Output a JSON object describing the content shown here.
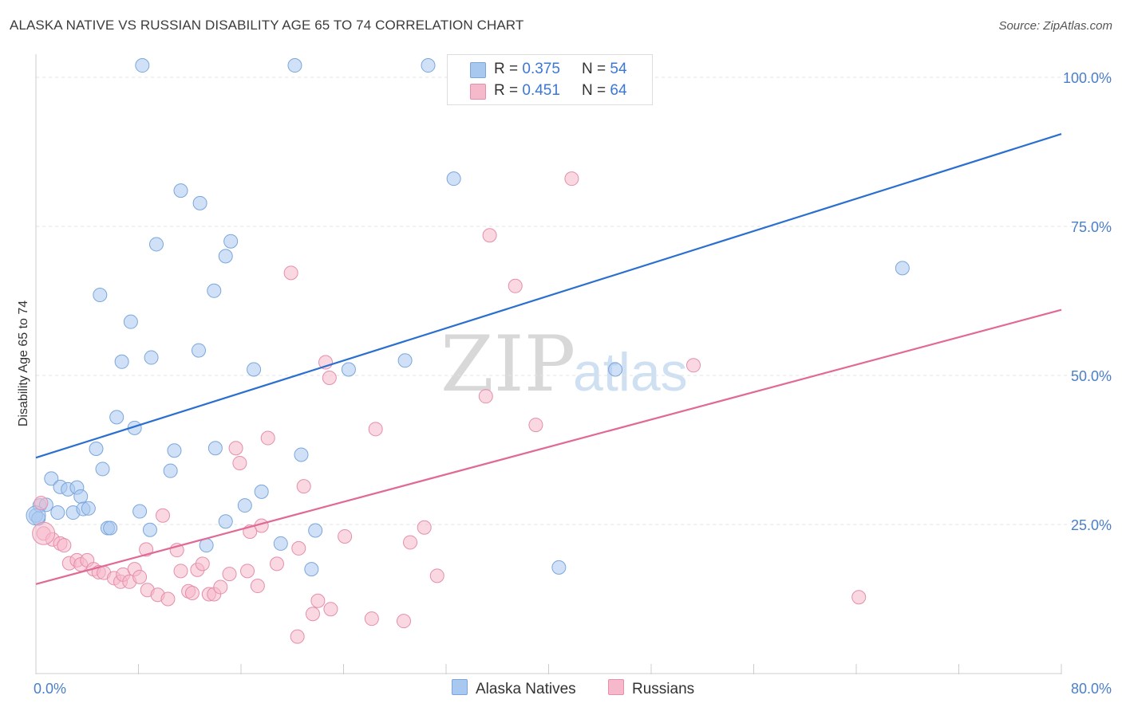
{
  "header": {
    "title": "ALASKA NATIVE VS RUSSIAN DISABILITY AGE 65 TO 74 CORRELATION CHART",
    "source": "Source: ZipAtlas.com"
  },
  "legend": {
    "rows": [
      {
        "r_label": "R =",
        "r_value": "0.375",
        "n_label": "N =",
        "n_value": "54",
        "color": "#a9c8f0"
      },
      {
        "r_label": "R =",
        "r_value": "0.451",
        "n_label": "N =",
        "n_value": "64",
        "color": "#f6b8cb"
      }
    ]
  },
  "bottom_legend": {
    "items": [
      {
        "label": "Alaska Natives",
        "color": "#a9c8f0"
      },
      {
        "label": "Russians",
        "color": "#f6b8cb"
      }
    ]
  },
  "watermark": {
    "zip": "ZIP",
    "atlas": "atlas"
  },
  "chart_data": {
    "type": "scatter",
    "title": "ALASKA NATIVE VS RUSSIAN DISABILITY AGE 65 TO 74 CORRELATION CHART",
    "xlabel": "",
    "ylabel": "Disability Age 65 to 74",
    "xlim": [
      0,
      80
    ],
    "ylim": [
      0,
      105
    ],
    "x_tick_labels": [
      "0.0%",
      "80.0%"
    ],
    "y_tick_labels": [
      "25.0%",
      "50.0%",
      "75.0%",
      "100.0%"
    ],
    "y_ticks": [
      25,
      50,
      75,
      100
    ],
    "grid": true,
    "legend_position": "top-center",
    "series": [
      {
        "name": "Alaska Natives",
        "color": "#a9c8f0",
        "stroke": "#7aa6dc",
        "trend_color": "#2a6fcf",
        "trend": {
          "x": [
            0,
            80
          ],
          "y": [
            36.2,
            90.5
          ]
        },
        "points": [
          [
            8.3,
            102.0
          ],
          [
            20.2,
            102.0
          ],
          [
            30.6,
            102.0
          ],
          [
            46.2,
            102.0
          ],
          [
            32.6,
            83.0
          ],
          [
            11.3,
            81.0
          ],
          [
            12.8,
            78.9
          ],
          [
            9.4,
            72.0
          ],
          [
            15.2,
            72.5
          ],
          [
            14.8,
            70.0
          ],
          [
            67.6,
            68.0
          ],
          [
            5.0,
            63.5
          ],
          [
            13.9,
            64.2
          ],
          [
            7.4,
            59.0
          ],
          [
            9.0,
            53.0
          ],
          [
            12.7,
            54.2
          ],
          [
            6.7,
            52.3
          ],
          [
            17.0,
            51.0
          ],
          [
            24.4,
            51.0
          ],
          [
            28.8,
            52.5
          ],
          [
            45.2,
            51.0
          ],
          [
            6.3,
            43.0
          ],
          [
            7.7,
            41.2
          ],
          [
            4.7,
            37.7
          ],
          [
            10.8,
            37.4
          ],
          [
            14.0,
            37.8
          ],
          [
            20.7,
            36.7
          ],
          [
            5.2,
            34.3
          ],
          [
            10.5,
            34.0
          ],
          [
            1.2,
            32.7
          ],
          [
            1.9,
            31.3
          ],
          [
            2.5,
            30.9
          ],
          [
            3.2,
            31.2
          ],
          [
            3.5,
            29.7
          ],
          [
            17.6,
            30.5
          ],
          [
            0.3,
            28.2
          ],
          [
            0.8,
            28.3
          ],
          [
            1.7,
            27.0
          ],
          [
            2.9,
            27.0
          ],
          [
            3.7,
            27.6
          ],
          [
            4.1,
            27.7
          ],
          [
            8.1,
            27.2
          ],
          [
            16.3,
            28.2
          ],
          [
            14.8,
            25.5
          ],
          [
            5.6,
            24.4
          ],
          [
            5.8,
            24.4
          ],
          [
            8.9,
            24.1
          ],
          [
            21.8,
            24.0
          ],
          [
            13.3,
            21.5
          ],
          [
            19.1,
            21.8
          ],
          [
            21.5,
            17.5
          ],
          [
            40.8,
            17.8
          ],
          [
            0.0,
            26.5
          ],
          [
            0.2,
            26.0
          ]
        ]
      },
      {
        "name": "Russians",
        "color": "#f6b8cb",
        "stroke": "#e68eaa",
        "trend_color": "#e06a95",
        "trend": {
          "x": [
            0,
            80
          ],
          "y": [
            15.0,
            61.0
          ]
        },
        "points": [
          [
            41.8,
            83.0
          ],
          [
            35.4,
            73.5
          ],
          [
            19.9,
            67.2
          ],
          [
            37.4,
            65.0
          ],
          [
            51.3,
            51.7
          ],
          [
            22.6,
            52.2
          ],
          [
            22.9,
            49.6
          ],
          [
            35.1,
            46.5
          ],
          [
            26.5,
            41.0
          ],
          [
            39.0,
            41.7
          ],
          [
            18.1,
            39.5
          ],
          [
            15.6,
            37.8
          ],
          [
            15.9,
            35.3
          ],
          [
            20.9,
            31.4
          ],
          [
            0.4,
            28.6
          ],
          [
            9.9,
            26.5
          ],
          [
            0.6,
            23.5
          ],
          [
            1.3,
            22.5
          ],
          [
            1.9,
            21.8
          ],
          [
            2.2,
            21.5
          ],
          [
            8.6,
            20.8
          ],
          [
            11.0,
            20.7
          ],
          [
            17.6,
            24.8
          ],
          [
            16.7,
            23.8
          ],
          [
            24.1,
            23.0
          ],
          [
            30.3,
            24.5
          ],
          [
            29.2,
            22.0
          ],
          [
            20.5,
            21.0
          ],
          [
            2.6,
            18.5
          ],
          [
            3.2,
            19.0
          ],
          [
            3.5,
            18.3
          ],
          [
            4.0,
            19.0
          ],
          [
            4.5,
            17.5
          ],
          [
            4.9,
            17.0
          ],
          [
            5.3,
            16.9
          ],
          [
            6.1,
            16.0
          ],
          [
            6.6,
            15.4
          ],
          [
            6.8,
            16.6
          ],
          [
            7.3,
            15.4
          ],
          [
            7.7,
            17.5
          ],
          [
            8.1,
            16.2
          ],
          [
            8.7,
            14.0
          ],
          [
            9.5,
            13.2
          ],
          [
            10.3,
            12.5
          ],
          [
            11.3,
            17.2
          ],
          [
            11.9,
            13.8
          ],
          [
            12.2,
            13.5
          ],
          [
            12.6,
            17.4
          ],
          [
            13.0,
            18.4
          ],
          [
            13.5,
            13.3
          ],
          [
            13.9,
            13.3
          ],
          [
            14.4,
            14.5
          ],
          [
            15.1,
            16.7
          ],
          [
            16.5,
            17.2
          ],
          [
            17.3,
            14.7
          ],
          [
            18.8,
            18.4
          ],
          [
            22.0,
            12.2
          ],
          [
            21.6,
            10.0
          ],
          [
            23.0,
            10.8
          ],
          [
            26.2,
            9.2
          ],
          [
            28.7,
            8.8
          ],
          [
            31.3,
            16.4
          ],
          [
            64.2,
            12.8
          ],
          [
            20.4,
            6.2
          ]
        ]
      }
    ]
  }
}
